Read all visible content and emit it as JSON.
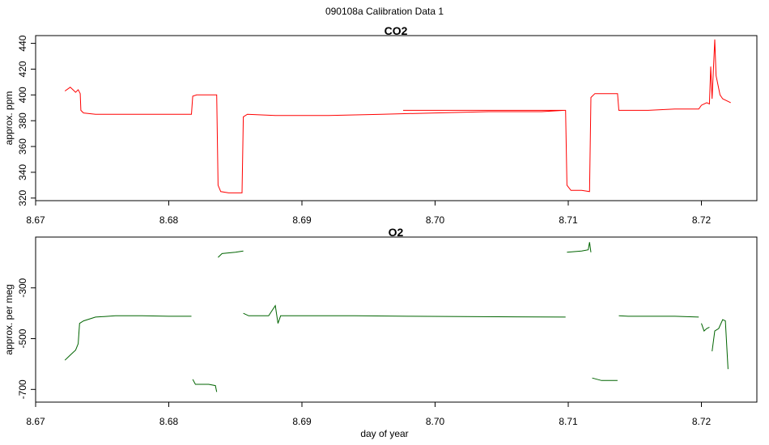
{
  "figure_title": "090108a   Calibration Data 1",
  "chart_data": [
    {
      "type": "line",
      "title": "CO2",
      "xlabel": "",
      "ylabel": "approx. ppm",
      "xlim": [
        8.67,
        8.723
      ],
      "ylim": [
        318,
        446
      ],
      "x_ticks": [
        "8.67",
        "8.68",
        "8.69",
        "8.70",
        "8.71",
        "8.72"
      ],
      "y_ticks": [
        "320",
        "340",
        "360",
        "380",
        "400",
        "420",
        "440"
      ],
      "color": "#ff0000",
      "series": [
        {
          "segments": [
            [
              [
                8.6722,
                403
              ],
              [
                8.6726,
                406
              ],
              [
                8.6728,
                404
              ],
              [
                8.673,
                402
              ],
              [
                8.6732,
                404
              ],
              [
                8.67335,
                401
              ],
              [
                8.6734,
                388
              ],
              [
                8.6736,
                386
              ],
              [
                8.6745,
                385
              ],
              [
                8.676,
                385
              ],
              [
                8.678,
                385
              ],
              [
                8.68,
                385
              ],
              [
                8.6817,
                385
              ],
              [
                8.6818,
                399
              ],
              [
                8.6821,
                400
              ],
              [
                8.683,
                400
              ],
              [
                8.6836,
                400
              ],
              [
                8.6837,
                330
              ],
              [
                8.6839,
                325
              ],
              [
                8.6845,
                324
              ],
              [
                8.6855,
                324
              ],
              [
                8.6856,
                383
              ],
              [
                8.6859,
                385
              ],
              [
                8.688,
                384
              ],
              [
                8.692,
                384
              ],
              [
                8.696,
                385
              ],
              [
                8.7,
                386
              ],
              [
                8.704,
                387
              ],
              [
                8.708,
                387
              ],
              [
                8.7097,
                388
              ],
              [
                8.6976,
                388
              ],
              [
                8.7098,
                388
              ],
              [
                8.7099,
                330
              ],
              [
                8.7102,
                326
              ],
              [
                8.711,
                326
              ],
              [
                8.7116,
                325
              ],
              [
                8.7117,
                398
              ],
              [
                8.712,
                401
              ],
              [
                8.713,
                401
              ],
              [
                8.7137,
                401
              ],
              [
                8.7138,
                388
              ],
              [
                8.7142,
                388
              ],
              [
                8.716,
                388
              ],
              [
                8.718,
                389
              ],
              [
                8.7198,
                389
              ],
              [
                8.72,
                392
              ],
              [
                8.7204,
                394
              ],
              [
                8.7206,
                393
              ],
              [
                8.7207,
                422
              ],
              [
                8.7208,
                397
              ],
              [
                8.721,
                443
              ],
              [
                8.7211,
                415
              ],
              [
                8.7214,
                400
              ],
              [
                8.7216,
                397
              ],
              [
                8.722,
                395
              ],
              [
                8.7222,
                394
              ]
            ]
          ]
        }
      ]
    },
    {
      "type": "line",
      "title": "O2",
      "xlabel": "day of year",
      "ylabel": "approx. per meg",
      "xlim": [
        8.67,
        8.723
      ],
      "ylim": [
        -750,
        -100
      ],
      "x_ticks": [
        "8.67",
        "8.68",
        "8.69",
        "8.70",
        "8.71",
        "8.72"
      ],
      "y_ticks": [
        "-300",
        "-500",
        "-700"
      ],
      "color": "#006400",
      "series": [
        {
          "segments": [
            [
              [
                8.6722,
                -585
              ],
              [
                8.6725,
                -570
              ],
              [
                8.6728,
                -555
              ],
              [
                8.673,
                -545
              ],
              [
                8.6732,
                -520
              ],
              [
                8.6733,
                -440
              ],
              [
                8.6736,
                -430
              ],
              [
                8.6745,
                -415
              ],
              [
                8.676,
                -410
              ],
              [
                8.678,
                -410
              ],
              [
                8.68,
                -412
              ],
              [
                8.6817,
                -412
              ]
            ],
            [
              [
                8.6818,
                -660
              ],
              [
                8.682,
                -680
              ],
              [
                8.683,
                -680
              ],
              [
                8.6835,
                -685
              ],
              [
                8.6836,
                -710
              ]
            ],
            [
              [
                8.6837,
                -180
              ],
              [
                8.684,
                -165
              ],
              [
                8.685,
                -160
              ],
              [
                8.6856,
                -155
              ]
            ],
            [
              [
                8.6856,
                -400
              ],
              [
                8.686,
                -410
              ],
              [
                8.6875,
                -410
              ],
              [
                8.688,
                -370
              ],
              [
                8.6882,
                -440
              ],
              [
                8.6884,
                -410
              ],
              [
                8.69,
                -410
              ],
              [
                8.694,
                -410
              ],
              [
                8.698,
                -412
              ],
              [
                8.7098,
                -415
              ]
            ],
            [
              [
                8.7099,
                -160
              ],
              [
                8.711,
                -155
              ],
              [
                8.7115,
                -150
              ],
              [
                8.7116,
                -120
              ],
              [
                8.7117,
                -160
              ]
            ],
            [
              [
                8.7118,
                -655
              ],
              [
                8.7125,
                -665
              ],
              [
                8.7137,
                -665
              ]
            ],
            [
              [
                8.7138,
                -410
              ],
              [
                8.7145,
                -412
              ],
              [
                8.716,
                -412
              ],
              [
                8.718,
                -412
              ],
              [
                8.7198,
                -415
              ]
            ],
            [
              [
                8.72,
                -440
              ],
              [
                8.7202,
                -470
              ],
              [
                8.7204,
                -460
              ],
              [
                8.7206,
                -455
              ]
            ],
            [
              [
                8.7208,
                -550
              ],
              [
                8.721,
                -470
              ],
              [
                8.7213,
                -460
              ],
              [
                8.7216,
                -425
              ],
              [
                8.7218,
                -430
              ],
              [
                8.722,
                -620
              ]
            ]
          ]
        }
      ]
    }
  ]
}
